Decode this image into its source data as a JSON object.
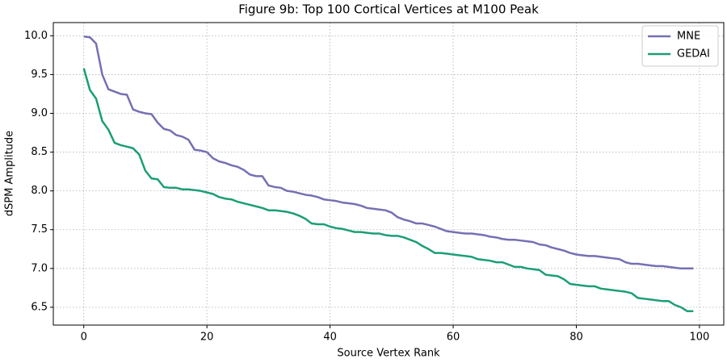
{
  "chart_data": {
    "type": "line",
    "title": "Figure 9b: Top 100 Cortical Vertices at M100 Peak",
    "x_label": "Source Vertex Rank",
    "y_label": "dSPM Amplitude",
    "x": [
      0,
      1,
      2,
      3,
      4,
      5,
      6,
      7,
      8,
      9,
      10,
      11,
      12,
      13,
      14,
      15,
      16,
      17,
      18,
      19,
      20,
      21,
      22,
      23,
      24,
      25,
      26,
      27,
      28,
      29,
      30,
      31,
      32,
      33,
      34,
      35,
      36,
      37,
      38,
      39,
      40,
      41,
      42,
      43,
      44,
      45,
      46,
      47,
      48,
      49,
      50,
      51,
      52,
      53,
      54,
      55,
      56,
      57,
      58,
      59,
      60,
      61,
      62,
      63,
      64,
      65,
      66,
      67,
      68,
      69,
      70,
      71,
      72,
      73,
      74,
      75,
      76,
      77,
      78,
      79,
      80,
      81,
      82,
      83,
      84,
      85,
      86,
      87,
      88,
      89,
      90,
      91,
      92,
      93,
      94,
      95,
      96,
      97,
      98,
      99
    ],
    "series": [
      {
        "name": "MNE",
        "color": "#7570b3",
        "values": [
          9.99,
          9.98,
          9.9,
          9.5,
          9.31,
          9.28,
          9.25,
          9.24,
          9.05,
          9.02,
          9.0,
          8.99,
          8.88,
          8.8,
          8.78,
          8.72,
          8.7,
          8.66,
          8.53,
          8.52,
          8.5,
          8.42,
          8.38,
          8.36,
          8.33,
          8.31,
          8.27,
          8.21,
          8.19,
          8.19,
          8.07,
          8.05,
          8.04,
          8.0,
          7.99,
          7.97,
          7.95,
          7.94,
          7.92,
          7.89,
          7.88,
          7.87,
          7.85,
          7.84,
          7.83,
          7.81,
          7.78,
          7.77,
          7.76,
          7.75,
          7.72,
          7.66,
          7.63,
          7.61,
          7.58,
          7.58,
          7.56,
          7.54,
          7.51,
          7.48,
          7.47,
          7.46,
          7.45,
          7.45,
          7.44,
          7.43,
          7.41,
          7.4,
          7.38,
          7.37,
          7.37,
          7.36,
          7.35,
          7.34,
          7.31,
          7.3,
          7.27,
          7.25,
          7.23,
          7.2,
          7.18,
          7.17,
          7.16,
          7.16,
          7.15,
          7.14,
          7.13,
          7.12,
          7.08,
          7.06,
          7.06,
          7.05,
          7.04,
          7.03,
          7.03,
          7.02,
          7.01,
          7.0,
          7.0,
          7.0
        ]
      },
      {
        "name": "GEDAI",
        "color": "#1b9e77",
        "values": [
          9.58,
          9.3,
          9.19,
          8.9,
          8.79,
          8.62,
          8.59,
          8.57,
          8.55,
          8.47,
          8.26,
          8.16,
          8.15,
          8.05,
          8.04,
          8.04,
          8.02,
          8.02,
          8.01,
          8.0,
          7.98,
          7.96,
          7.92,
          7.9,
          7.89,
          7.86,
          7.84,
          7.82,
          7.8,
          7.78,
          7.75,
          7.75,
          7.74,
          7.73,
          7.71,
          7.68,
          7.64,
          7.58,
          7.57,
          7.57,
          7.54,
          7.52,
          7.51,
          7.49,
          7.47,
          7.47,
          7.46,
          7.45,
          7.45,
          7.43,
          7.42,
          7.42,
          7.4,
          7.37,
          7.34,
          7.29,
          7.25,
          7.2,
          7.2,
          7.19,
          7.18,
          7.17,
          7.16,
          7.15,
          7.12,
          7.11,
          7.1,
          7.08,
          7.08,
          7.05,
          7.02,
          7.02,
          7.0,
          6.99,
          6.98,
          6.92,
          6.91,
          6.9,
          6.86,
          6.8,
          6.79,
          6.78,
          6.77,
          6.77,
          6.74,
          6.73,
          6.72,
          6.71,
          6.7,
          6.68,
          6.62,
          6.61,
          6.6,
          6.59,
          6.58,
          6.58,
          6.53,
          6.5,
          6.45,
          6.45
        ]
      }
    ],
    "xlim": [
      -4.95,
      103.95
    ],
    "ylim": [
      6.27,
      10.17
    ],
    "xticks": [
      0,
      20,
      40,
      60,
      80,
      100
    ],
    "yticks": [
      6.5,
      {
        "value": 7,
        "label": "7.0"
      },
      7.5,
      {
        "value": 8,
        "label": "8.0"
      },
      8.5,
      {
        "value": 9,
        "label": "9.0"
      },
      9.5,
      {
        "value": 10,
        "label": "10.0"
      }
    ],
    "grid": true,
    "legend": "upper right"
  }
}
